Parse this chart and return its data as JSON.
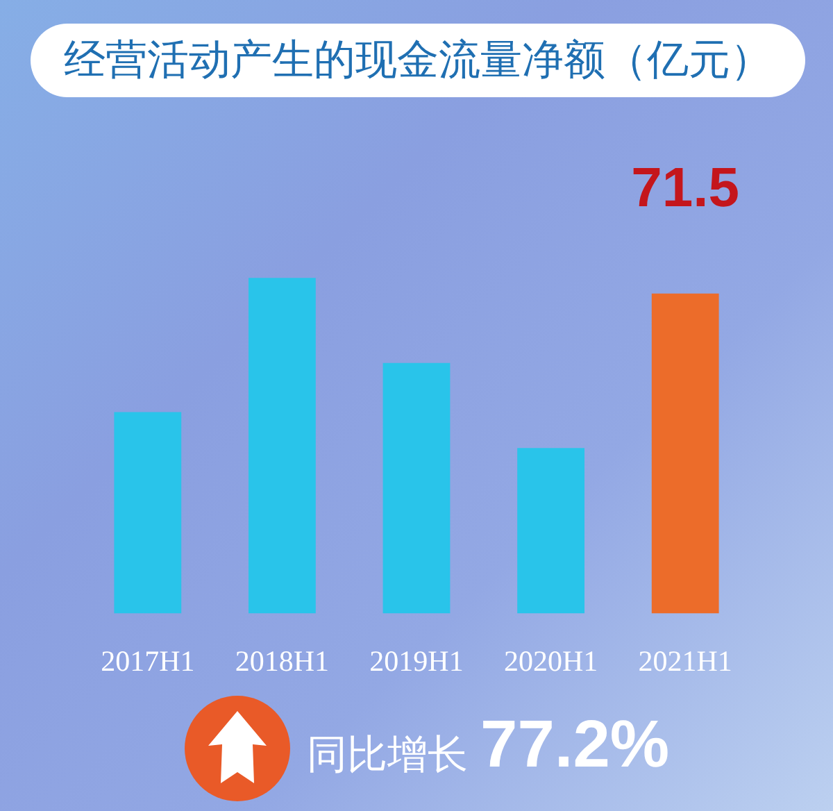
{
  "chart_data": {
    "type": "bar",
    "title": "经营活动产生的现金流量净额（亿元）",
    "categories": [
      "2017H1",
      "2018H1",
      "2019H1",
      "2020H1",
      "2021H1"
    ],
    "values": [
      45,
      75,
      56,
      37,
      71.5
    ],
    "colors": [
      "#29c4ea",
      "#29c4ea",
      "#29c4ea",
      "#29c4ea",
      "#ec6c2a"
    ],
    "value_labels": [
      null,
      null,
      null,
      null,
      "71.5"
    ],
    "annotations": [
      "同比增长",
      "77.2%"
    ]
  }
}
